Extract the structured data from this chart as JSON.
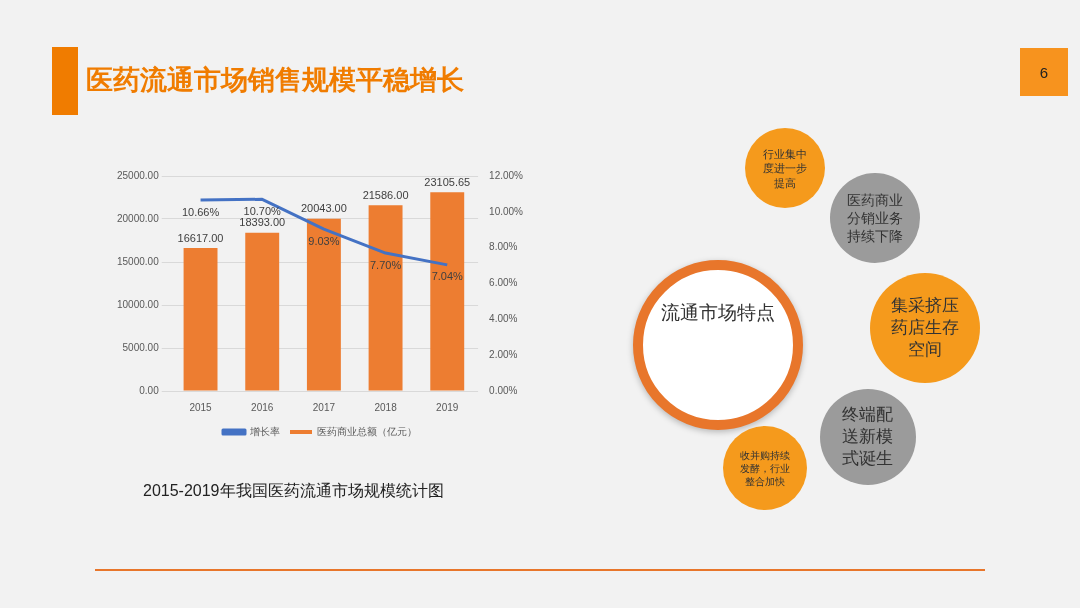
{
  "chart_data": [
    {
      "type": "bar",
      "title": "医药流通市场销售规模平稳增长",
      "categories": [
        "2015",
        "2016",
        "2017",
        "2018",
        "2019"
      ],
      "series": [
        {
          "name": "医药商业总额（亿元）",
          "color": "#ed7d31",
          "values": [
            16617.0,
            18393.0,
            20043.0,
            21586.0,
            23105.65
          ],
          "value_labels": [
            "16617.00",
            "18393.00",
            "20043.00",
            "21586.00",
            "23105.65"
          ]
        },
        {
          "name": "增长率",
          "type": "line",
          "axis": "y2",
          "color": "#4472c4",
          "values": [
            10.66,
            10.7,
            9.03,
            7.7,
            7.04
          ],
          "value_labels": [
            "10.66%",
            "10.70%",
            "9.03%",
            "7.70%",
            "7.04%"
          ]
        }
      ],
      "ylim": [
        0,
        25000
      ],
      "yticks": [
        {
          "value": 0,
          "label": "0.00"
        },
        {
          "value": 5000,
          "label": "5000.00"
        },
        {
          "value": 10000,
          "label": "10000.00"
        },
        {
          "value": 15000,
          "label": "15000.00"
        },
        {
          "value": 20000,
          "label": "20000.00"
        },
        {
          "value": 25000,
          "label": "25000.00"
        }
      ],
      "y2lim": [
        0,
        12
      ],
      "y2ticks": [
        {
          "value": 0,
          "label": "0.00%"
        },
        {
          "value": 2,
          "label": "2.00%"
        },
        {
          "value": 4,
          "label": "4.00%"
        },
        {
          "value": 6,
          "label": "6.00%"
        },
        {
          "value": 8,
          "label": "8.00%"
        },
        {
          "value": 10,
          "label": "10.00%"
        },
        {
          "value": 12,
          "label": "12.00%"
        }
      ],
      "grid": "y",
      "legend": "bottom",
      "marker": "none",
      "line_style": "solid",
      "annotations": [
        "2015-2019年我国医药流通市场规模统计图",
        "6"
      ]
    },
    {
      "type": "other",
      "title": "流通市场特点",
      "annotations": [
        "行业集中度进一步提高",
        "医药商业分销业务持续下降",
        "集采挤压药店生存空间",
        "终端配送新模式诞生",
        "收并购持续发酵，行业整合加快"
      ]
    }
  ]
}
